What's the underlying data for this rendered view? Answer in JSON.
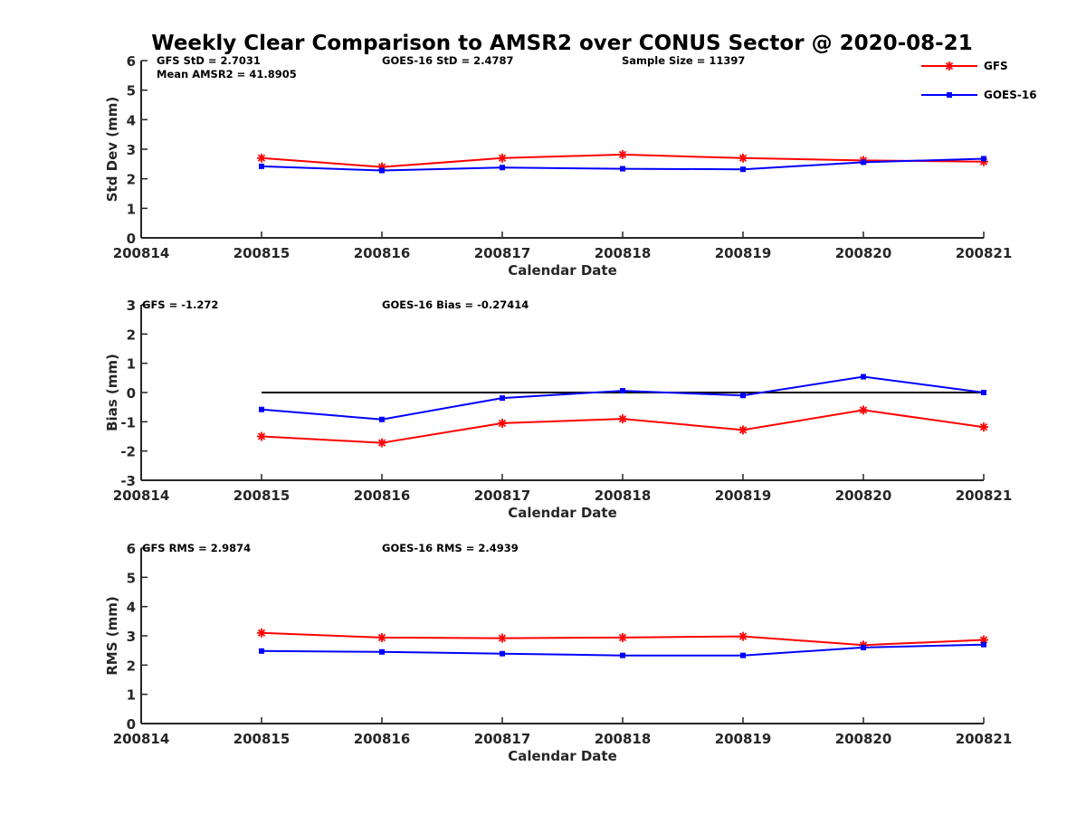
{
  "figure": {
    "title": "Weekly Clear Comparison to AMSR2 over CONUS Sector @ 2020-08-21"
  },
  "legend": {
    "placement": "top-right",
    "items": [
      {
        "label": "GFS",
        "color": "#ff0000",
        "marker": "asterisk"
      },
      {
        "label": "GOES-16",
        "color": "#0000ff",
        "marker": "square"
      }
    ]
  },
  "chart_data": [
    {
      "type": "line",
      "xlabel": "Calendar Date",
      "ylabel": "Std Dev (mm)",
      "xlim": [
        200814,
        200821
      ],
      "ylim": [
        0,
        6
      ],
      "x_ticks": [
        "200814",
        "200815",
        "200816",
        "200817",
        "200818",
        "200819",
        "200820",
        "200821"
      ],
      "y_ticks": [
        "0",
        "1",
        "2",
        "3",
        "4",
        "5",
        "6"
      ],
      "grid": false,
      "annotations": [
        "GFS StD = 2.7031",
        "GOES-16 StD = 2.4787",
        "Sample Size = 11397",
        "Mean AMSR2 = 41.8905"
      ],
      "x": [
        200815,
        200816,
        200817,
        200818,
        200819,
        200820,
        200821
      ],
      "series": [
        {
          "name": "GFS",
          "color": "#ff0000",
          "marker": "asterisk",
          "values": [
            2.7,
            2.4,
            2.7,
            2.82,
            2.7,
            2.62,
            2.58
          ]
        },
        {
          "name": "GOES-16",
          "color": "#0000ff",
          "marker": "square",
          "values": [
            2.42,
            2.28,
            2.38,
            2.34,
            2.32,
            2.56,
            2.68
          ]
        }
      ]
    },
    {
      "type": "line",
      "xlabel": "Calendar Date",
      "ylabel": "Bias (mm)",
      "xlim": [
        200814,
        200821
      ],
      "ylim": [
        -3,
        3
      ],
      "x_ticks": [
        "200814",
        "200815",
        "200816",
        "200817",
        "200818",
        "200819",
        "200820",
        "200821"
      ],
      "y_ticks": [
        "-3",
        "-2",
        "-1",
        "0",
        "1",
        "2",
        "3"
      ],
      "grid": false,
      "annotations": [
        "GFS = -1.272",
        "GOES-16 Bias  = -0.27414"
      ],
      "reference_line": 0,
      "x": [
        200815,
        200816,
        200817,
        200818,
        200819,
        200820,
        200821
      ],
      "series": [
        {
          "name": "GFS",
          "color": "#ff0000",
          "marker": "asterisk",
          "values": [
            -1.5,
            -1.72,
            -1.05,
            -0.9,
            -1.28,
            -0.6,
            -1.18
          ]
        },
        {
          "name": "GOES-16",
          "color": "#0000ff",
          "marker": "square",
          "values": [
            -0.58,
            -0.92,
            -0.19,
            0.06,
            -0.1,
            0.54,
            0.0
          ]
        }
      ]
    },
    {
      "type": "line",
      "xlabel": "Calendar Date",
      "ylabel": "RMS (mm)",
      "xlim": [
        200814,
        200821
      ],
      "ylim": [
        0,
        6
      ],
      "x_ticks": [
        "200814",
        "200815",
        "200816",
        "200817",
        "200818",
        "200819",
        "200820",
        "200821"
      ],
      "y_ticks": [
        "0",
        "1",
        "2",
        "3",
        "4",
        "5",
        "6"
      ],
      "grid": false,
      "annotations": [
        "GFS RMS = 2.9874",
        "GOES-16 RMS = 2.4939"
      ],
      "x": [
        200815,
        200816,
        200817,
        200818,
        200819,
        200820,
        200821
      ],
      "series": [
        {
          "name": "GFS",
          "color": "#ff0000",
          "marker": "asterisk",
          "values": [
            3.1,
            2.94,
            2.92,
            2.94,
            2.98,
            2.68,
            2.86
          ]
        },
        {
          "name": "GOES-16",
          "color": "#0000ff",
          "marker": "square",
          "values": [
            2.48,
            2.45,
            2.39,
            2.33,
            2.33,
            2.6,
            2.7
          ]
        }
      ]
    }
  ]
}
